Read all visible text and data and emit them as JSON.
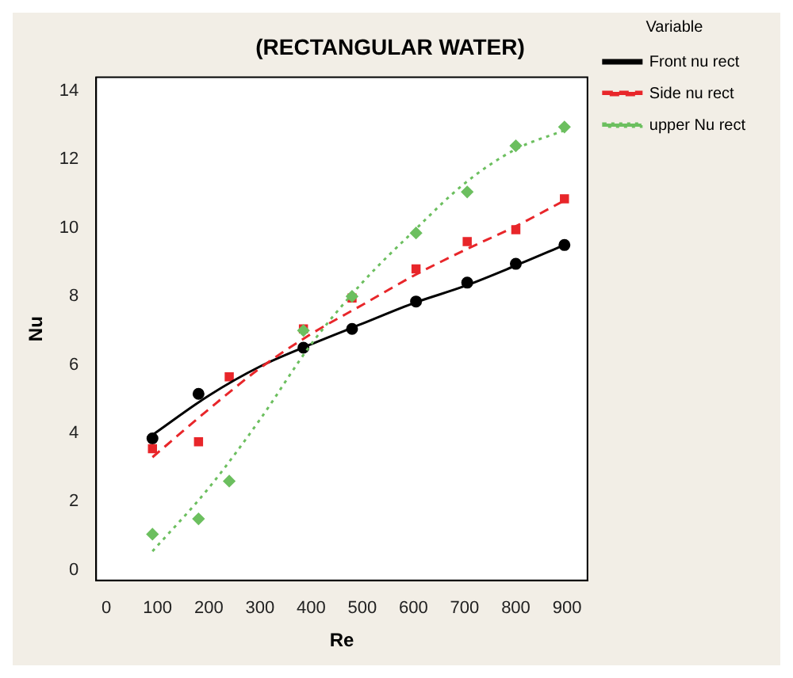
{
  "chart_data": {
    "type": "scatter",
    "title": "(RECTANGULAR WATER)",
    "xlabel": "Re",
    "ylabel": "Nu",
    "legend_title": "Variable",
    "legend": "right",
    "grid": false,
    "xlim": [
      -20,
      940
    ],
    "xticks": [
      0,
      100,
      200,
      300,
      400,
      500,
      600,
      700,
      800,
      900
    ],
    "ylim": [
      -0.3,
      14.4
    ],
    "yticks": [
      0,
      2,
      4,
      6,
      8,
      10,
      12,
      14
    ],
    "series": [
      {
        "name": "Front nu rect",
        "marker": "circle",
        "line_style": "solid",
        "color": "#000000",
        "x": [
          90,
          180,
          385,
          480,
          605,
          705,
          800,
          895
        ],
        "values": [
          3.85,
          5.15,
          6.5,
          7.05,
          7.85,
          8.4,
          8.95,
          9.5
        ]
      },
      {
        "name": "Side nu rect",
        "marker": "square",
        "line_style": "dashed",
        "color": "#e8262a",
        "x": [
          90,
          180,
          240,
          385,
          480,
          605,
          705,
          800,
          895
        ],
        "values": [
          3.55,
          3.75,
          5.65,
          7.05,
          7.95,
          8.8,
          9.6,
          9.95,
          10.85
        ]
      },
      {
        "name": "upper Nu rect",
        "marker": "diamond",
        "line_style": "dotted",
        "color": "#6cbf5f",
        "x": [
          90,
          180,
          240,
          385,
          480,
          605,
          705,
          800,
          895
        ],
        "values": [
          1.05,
          1.5,
          2.6,
          7.0,
          8.0,
          9.85,
          11.05,
          12.4,
          12.95
        ]
      },
      {
        "type": "line",
        "marker": "none",
        "line_style": "solid",
        "color": "#000000",
        "x": [
          90,
          200,
          300,
          400,
          500,
          600,
          700,
          800,
          895
        ],
        "values": [
          3.95,
          5.1,
          5.95,
          6.6,
          7.2,
          7.8,
          8.3,
          8.9,
          9.5
        ]
      },
      {
        "type": "line",
        "marker": "none",
        "line_style": "dashed",
        "color": "#e8262a",
        "x": [
          90,
          200,
          300,
          400,
          500,
          600,
          700,
          800,
          895
        ],
        "values": [
          3.3,
          4.7,
          5.9,
          6.9,
          7.75,
          8.6,
          9.35,
          10.05,
          10.8
        ]
      },
      {
        "type": "line",
        "marker": "none",
        "line_style": "dotted",
        "color": "#6cbf5f",
        "x": [
          90,
          200,
          300,
          400,
          500,
          600,
          700,
          800,
          895
        ],
        "values": [
          0.55,
          2.4,
          4.4,
          6.6,
          8.4,
          9.9,
          11.3,
          12.3,
          12.85
        ]
      }
    ]
  }
}
